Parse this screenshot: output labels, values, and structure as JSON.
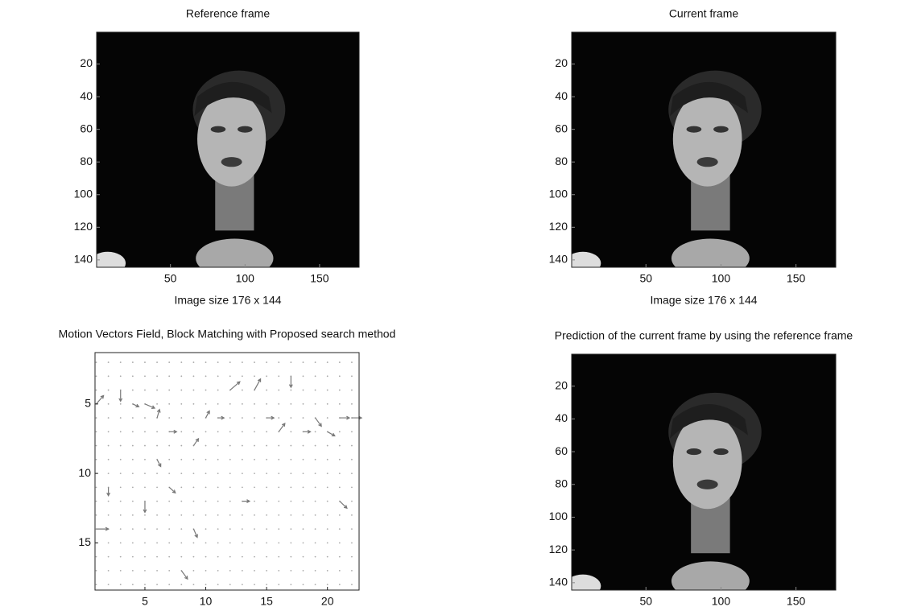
{
  "chart_data": [
    {
      "type": "image",
      "title": "Reference frame",
      "xlabel": "Image size 176 x 144",
      "xlim": [
        0.5,
        176.5
      ],
      "ylim": [
        0.5,
        144.5
      ],
      "xticks": [
        50,
        100,
        150
      ],
      "yticks": [
        20,
        40,
        60,
        80,
        100,
        120,
        140
      ]
    },
    {
      "type": "image",
      "title": "Current frame",
      "xlabel": "Image size 176 x 144",
      "xlim": [
        0.5,
        176.5
      ],
      "ylim": [
        0.5,
        144.5
      ],
      "xticks": [
        50,
        100,
        150
      ],
      "yticks": [
        20,
        40,
        60,
        80,
        100,
        120,
        140
      ]
    },
    {
      "type": "quiver",
      "title": "Motion Vectors Field, Block Matching with Proposed search method",
      "xlim": [
        0.9,
        22.6
      ],
      "ylim": [
        1.3,
        18.4
      ],
      "xticks": [
        5,
        10,
        15,
        20
      ],
      "yticks": [
        5,
        10,
        15
      ],
      "color": "#777777",
      "x": [
        1,
        3,
        4,
        5,
        6,
        12,
        14,
        17,
        19,
        20,
        21,
        22,
        7,
        9,
        11,
        16,
        18,
        6,
        7,
        2,
        5,
        9,
        13,
        8,
        1,
        21,
        10,
        15
      ],
      "y": [
        5,
        4,
        5,
        5,
        6,
        4,
        4,
        3,
        6,
        7,
        6,
        6,
        7,
        8,
        6,
        7,
        7,
        9,
        11,
        11,
        12,
        14,
        12,
        17,
        14,
        12,
        6,
        6
      ],
      "u": [
        0.6,
        0,
        0.5,
        0.8,
        0.2,
        0.8,
        0.5,
        0,
        0.5,
        0.6,
        0.8,
        0.8,
        0.6,
        0.4,
        0.5,
        0.5,
        0.6,
        0.3,
        0.5,
        0,
        0,
        0.3,
        0.6,
        0.5,
        1,
        0.6,
        0.3,
        0.6
      ],
      "v": [
        -0.6,
        0.8,
        0.2,
        0.3,
        -0.6,
        -0.6,
        -0.8,
        0.8,
        0.6,
        0.3,
        0,
        0,
        0,
        -0.5,
        0,
        -0.6,
        0,
        0.5,
        0.4,
        0.6,
        0.8,
        0.6,
        0,
        0.6,
        0,
        0.5,
        -0.5,
        0
      ]
    },
    {
      "type": "image",
      "title": "Prediction of the current frame  by using the reference frame",
      "xlim": [
        0.5,
        176.5
      ],
      "ylim": [
        0.5,
        144.5
      ],
      "xticks": [
        50,
        100,
        150
      ],
      "yticks": [
        20,
        40,
        60,
        80,
        100,
        120,
        140
      ]
    }
  ]
}
